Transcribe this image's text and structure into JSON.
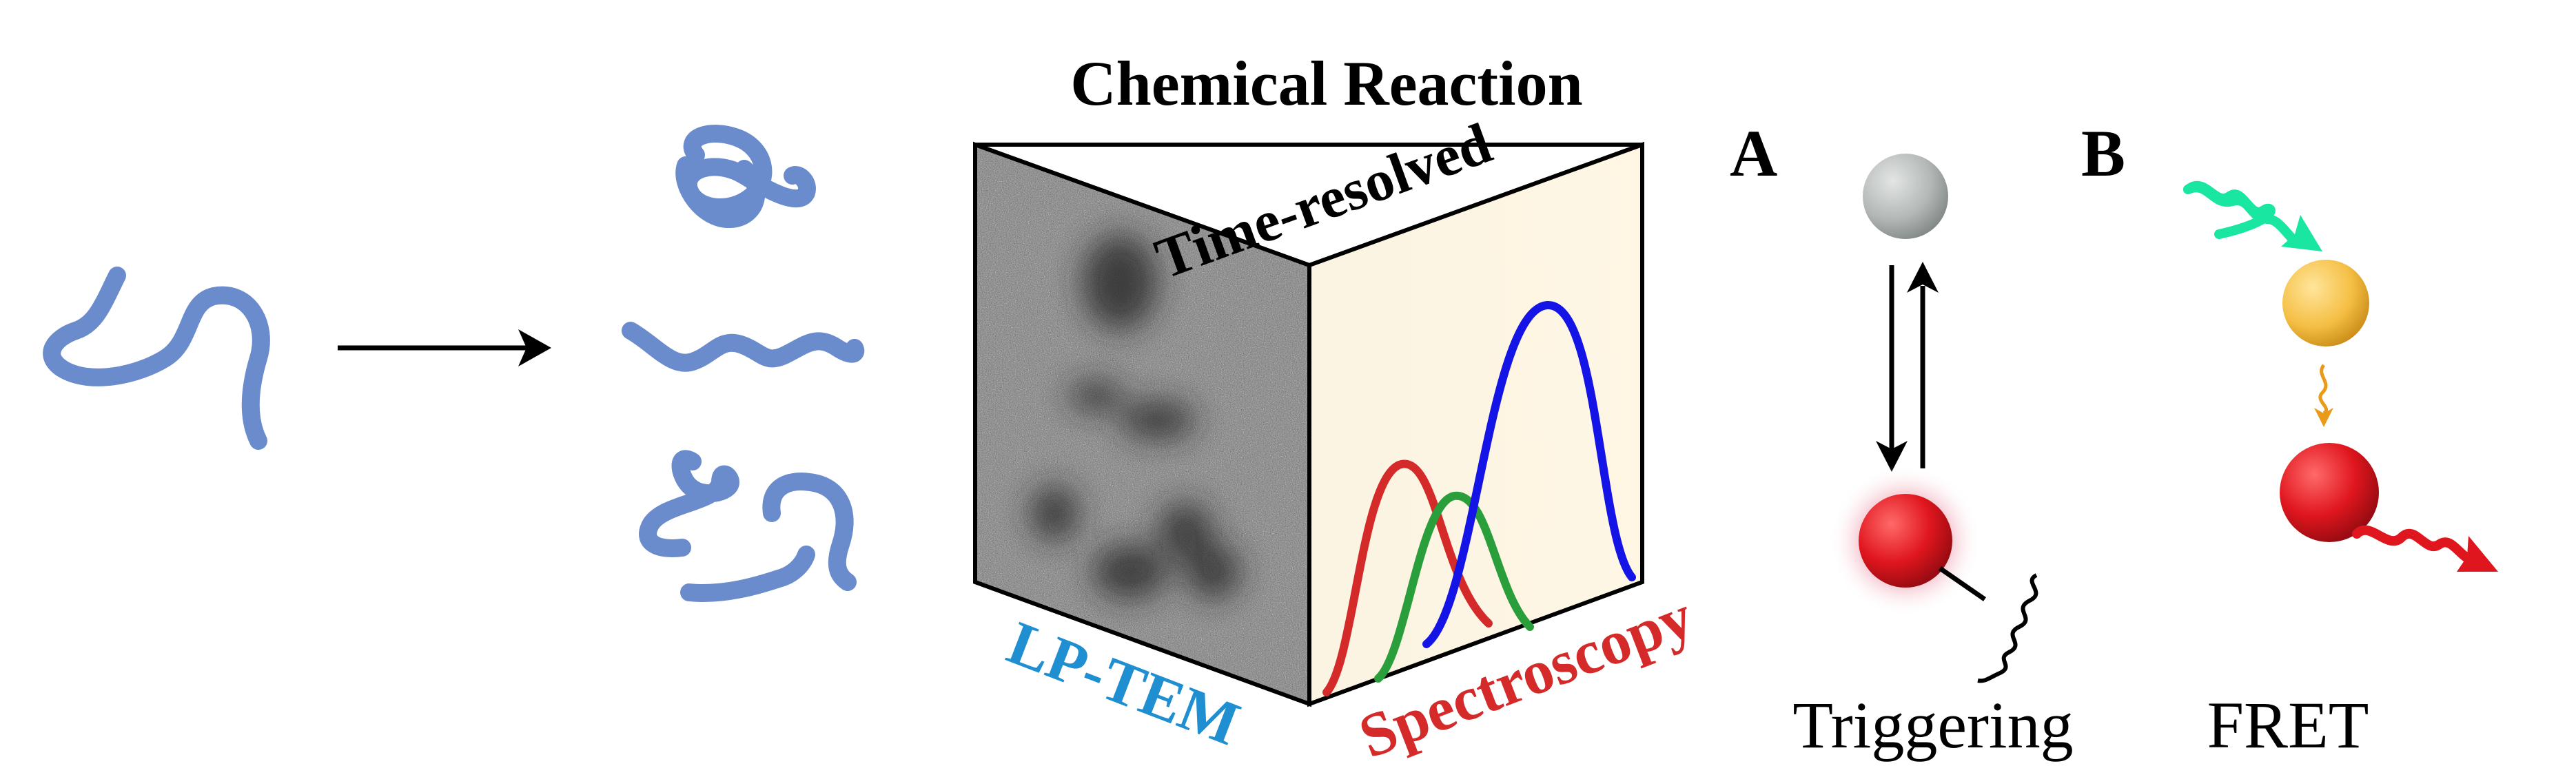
{
  "title": "Chemical Reaction",
  "faces": {
    "top": "Time-resolved",
    "left": "LP-TEM",
    "right": "Spectroscopy"
  },
  "panels": {
    "a": {
      "letter": "A",
      "caption": "Triggering"
    },
    "b": {
      "letter": "B",
      "caption": "FRET"
    }
  },
  "colors": {
    "strand": "#6b8ccc",
    "lp_tem": "#1f8fd1",
    "spectroscopy": "#d42a2a",
    "curve_red": "#d42a2a",
    "curve_green": "#2a9e3a",
    "curve_blue": "#1414e6",
    "sphere_gray": "#b8bcbb",
    "sphere_yellow": "#f6c24a",
    "sphere_red": "#e0161e",
    "wave_cyan": "#19e6a0",
    "wave_orange": "#e89a18",
    "wave_red": "#e0161e"
  },
  "icons": [
    "arrow-right-icon",
    "equilibrium-arrows-icon",
    "wavy-arrow-icon",
    "sphere-icon"
  ]
}
